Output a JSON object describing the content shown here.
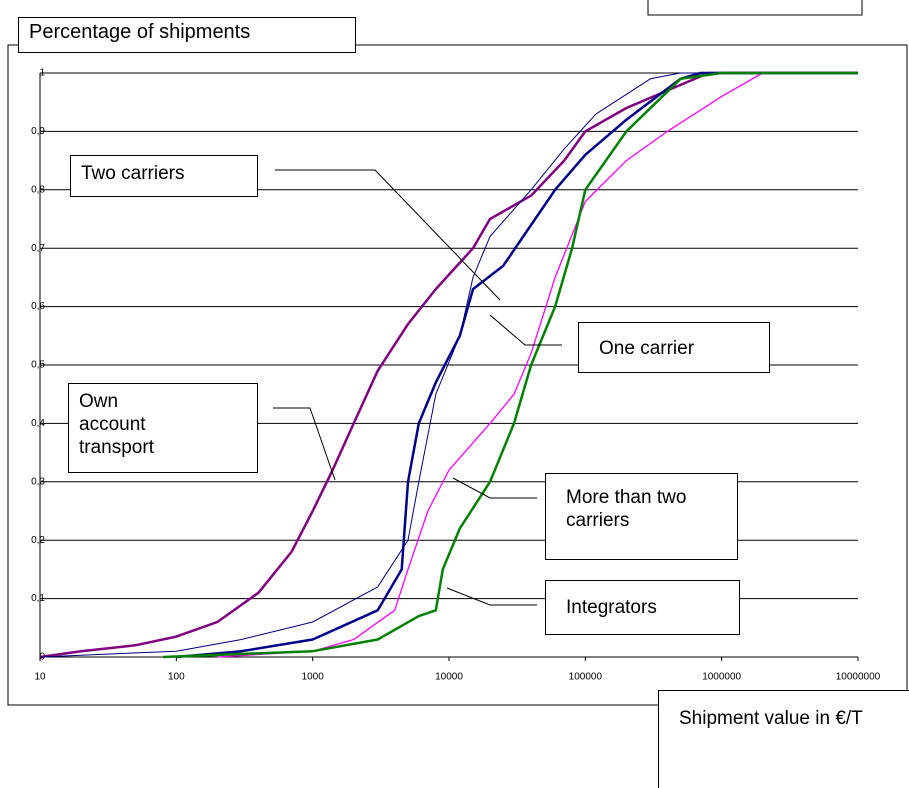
{
  "chart_data": {
    "type": "line",
    "title": "Percentage of shipments",
    "x_label": "Shipment value in €/T",
    "x_log": true,
    "grid": true,
    "xlim": [
      10,
      10000000
    ],
    "xticks": [
      10,
      100,
      1000,
      10000,
      100000,
      1000000,
      10000000
    ],
    "ylim": [
      0,
      1
    ],
    "yticks": [
      0,
      {
        "value": 0.1,
        "label": "0,1"
      },
      {
        "value": 0.2,
        "label": "0,2"
      },
      {
        "value": 0.3,
        "label": "0,3"
      },
      {
        "value": 0.4,
        "label": "0,4"
      },
      {
        "value": 0.5,
        "label": "0,5"
      },
      {
        "value": 0.6,
        "label": "0,6"
      },
      {
        "value": 0.7,
        "label": "0,7"
      },
      {
        "value": 0.8,
        "label": "0,8"
      },
      {
        "value": 0.9,
        "label": "0,9"
      },
      1
    ],
    "series": [
      {
        "name": "Own account transport",
        "color": "#800080",
        "x": [
          10,
          20,
          50,
          100,
          200,
          400,
          700,
          1000,
          1400,
          2000,
          3000,
          5000,
          8000,
          15000,
          20000,
          40000,
          70000,
          100000,
          200000,
          400000,
          800000,
          10000000
        ],
        "values": [
          0,
          0.01,
          0.02,
          0.035,
          0.06,
          0.11,
          0.18,
          0.25,
          0.32,
          0.4,
          0.49,
          0.57,
          0.63,
          0.7,
          0.75,
          0.79,
          0.85,
          0.9,
          0.94,
          0.97,
          1,
          1
        ]
      },
      {
        "name": "Two carriers",
        "color": "#000080",
        "x": [
          10,
          100,
          300,
          1000,
          3000,
          5000,
          6000,
          8000,
          12000,
          15000,
          20000,
          40000,
          70000,
          120000,
          300000,
          500000,
          10000000
        ],
        "values": [
          0,
          0.01,
          0.03,
          0.06,
          0.12,
          0.2,
          0.3,
          0.45,
          0.55,
          0.65,
          0.72,
          0.8,
          0.87,
          0.93,
          0.99,
          1,
          1
        ]
      },
      {
        "name": "One carrier",
        "color": "#00008b",
        "x": [
          100,
          300,
          1000,
          3000,
          4500,
          5000,
          6000,
          8000,
          12000,
          15000,
          25000,
          35000,
          60000,
          100000,
          200000,
          500000,
          700000,
          10000000
        ],
        "values": [
          0,
          0.01,
          0.03,
          0.08,
          0.15,
          0.3,
          0.4,
          0.47,
          0.55,
          0.63,
          0.67,
          0.72,
          0.8,
          0.86,
          0.92,
          0.99,
          1,
          1
        ]
      },
      {
        "name": "More than two carriers",
        "color": "#ff00ff",
        "x": [
          200,
          1000,
          2000,
          4000,
          5000,
          7000,
          10000,
          20000,
          30000,
          40000,
          60000,
          100000,
          200000,
          400000,
          1000000,
          2000000,
          10000000
        ],
        "values": [
          0,
          0.01,
          0.03,
          0.08,
          0.15,
          0.25,
          0.32,
          0.4,
          0.45,
          0.52,
          0.65,
          0.78,
          0.85,
          0.9,
          0.96,
          1,
          1
        ]
      },
      {
        "name": "Integrators",
        "color": "#008000",
        "x": [
          80,
          1000,
          3000,
          6000,
          8000,
          9000,
          12000,
          20000,
          30000,
          40000,
          60000,
          80000,
          100000,
          200000,
          500000,
          1000000,
          10000000
        ],
        "values": [
          0,
          0.01,
          0.03,
          0.07,
          0.08,
          0.15,
          0.22,
          0.3,
          0.4,
          0.5,
          0.6,
          0.7,
          0.8,
          0.9,
          0.99,
          1,
          1
        ]
      }
    ]
  }
}
